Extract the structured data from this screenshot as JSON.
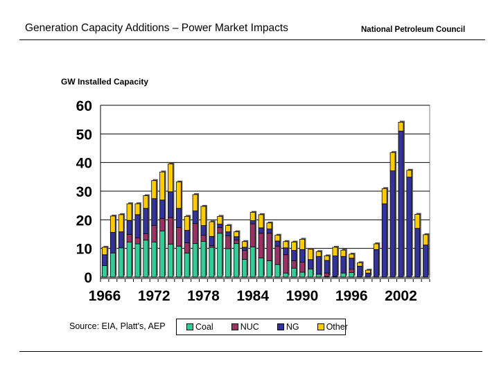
{
  "header": {
    "title": "Generation Capacity Additions – Power Market Impacts",
    "organization": "National Petroleum Council"
  },
  "source": "Source: EIA, Platt's, AEP",
  "chart_data": {
    "type": "bar",
    "stacked": true,
    "ylabel": "GW Installed Capacity",
    "ylim": [
      0,
      60
    ],
    "yticks": [
      "0",
      "10",
      "20",
      "30",
      "40",
      "50",
      "60"
    ],
    "xtick_labels": [
      "1966",
      "1972",
      "1978",
      "1984",
      "1990",
      "1996",
      "2002"
    ],
    "grid": true,
    "legend_position": "bottom",
    "categories": [
      1966,
      1967,
      1968,
      1969,
      1970,
      1971,
      1972,
      1973,
      1974,
      1975,
      1976,
      1977,
      1978,
      1979,
      1980,
      1981,
      1982,
      1983,
      1984,
      1985,
      1986,
      1987,
      1988,
      1989,
      1990,
      1991,
      1992,
      1993,
      1994,
      1995,
      1996,
      1997,
      1998,
      1999,
      2000,
      2001,
      2002,
      2003,
      2004,
      2005
    ],
    "series": [
      {
        "name": "Coal",
        "color": "#33cc99",
        "values": [
          4.0,
          8.4,
          10.2,
          12.2,
          11.6,
          12.9,
          12.2,
          16.1,
          11.5,
          10.8,
          8.4,
          11.7,
          12.5,
          10.4,
          15.3,
          9.9,
          11.7,
          6.2,
          10.5,
          6.7,
          5.7,
          4.4,
          1.4,
          3.1,
          1.7,
          2.8,
          1.0,
          0.2,
          0.2,
          1.4,
          1.6,
          0,
          0,
          0,
          0,
          0,
          0,
          0,
          0,
          0
        ]
      },
      {
        "name": "NUC",
        "color": "#993366",
        "values": [
          0,
          0,
          0,
          2.7,
          2.1,
          2.2,
          5.8,
          4.3,
          9.3,
          6.5,
          3.6,
          7.0,
          2.1,
          0.6,
          2.0,
          4.5,
          1.2,
          3.1,
          8.1,
          8.6,
          9.6,
          6.4,
          6.4,
          2.6,
          3.5,
          0,
          0,
          1.2,
          0,
          0,
          1.2,
          0,
          0,
          0,
          0,
          0,
          0,
          0,
          0,
          0
        ]
      },
      {
        "name": "NG",
        "color": "#333399",
        "values": [
          3.8,
          7.2,
          5.6,
          4.9,
          8.1,
          8.9,
          9.4,
          6.5,
          9.0,
          6.7,
          4.3,
          4.4,
          3.4,
          3.2,
          1.2,
          1.4,
          1.2,
          1.1,
          1.1,
          1.9,
          1.5,
          1.8,
          2.4,
          3.6,
          4.4,
          3.3,
          6.2,
          4.4,
          7.2,
          5.8,
          3.8,
          3.8,
          1.4,
          9.6,
          25.6,
          37.1,
          51.0,
          34.9,
          17.0,
          11.2
        ]
      },
      {
        "name": "Other",
        "color": "#ffcc00",
        "values": [
          2.6,
          5.7,
          6.0,
          5.8,
          3.8,
          4.4,
          6.3,
          9.8,
          9.7,
          9.2,
          4.9,
          5.7,
          6.7,
          5.1,
          2.7,
          2.2,
          1.7,
          2.0,
          2.9,
          4.6,
          2.1,
          2.0,
          2.2,
          2.9,
          3.6,
          3.6,
          1.7,
          1.6,
          3.0,
          2.2,
          1.4,
          1.2,
          1.0,
          2.0,
          5.3,
          6.4,
          3.1,
          2.4,
          4.9,
          3.6
        ]
      }
    ]
  }
}
